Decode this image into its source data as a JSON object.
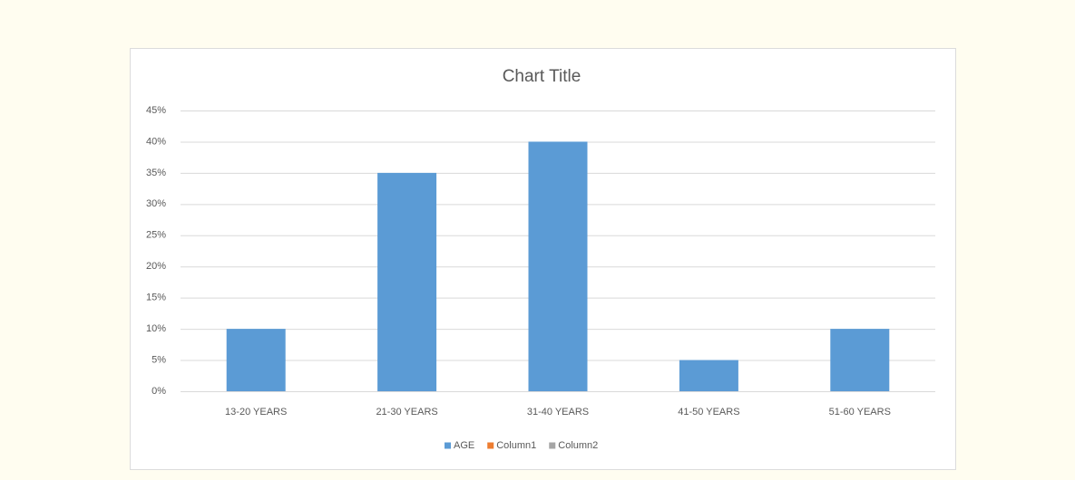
{
  "chart_data": {
    "type": "bar",
    "title": "Chart Title",
    "categories": [
      "13-20 YEARS",
      "21-30 YEARS",
      "31-40 YEARS",
      "41-50 YEARS",
      "51-60 YEARS"
    ],
    "series": [
      {
        "name": "AGE",
        "color": "#5b9bd5",
        "values": [
          10,
          35,
          40,
          5,
          10
        ]
      },
      {
        "name": "Column1",
        "color": "#ed7d31",
        "values": [
          null,
          null,
          null,
          null,
          null
        ]
      },
      {
        "name": "Column2",
        "color": "#a5a5a5",
        "values": [
          null,
          null,
          null,
          null,
          null
        ]
      }
    ],
    "ylim": [
      0,
      45
    ],
    "yticks": [
      {
        "value": 0,
        "label": "0%"
      },
      {
        "value": 5,
        "label": "5%"
      },
      {
        "value": 10,
        "label": "10%"
      },
      {
        "value": 15,
        "label": "15%"
      },
      {
        "value": 20,
        "label": "20%"
      },
      {
        "value": 25,
        "label": "25%"
      },
      {
        "value": 30,
        "label": "30%"
      },
      {
        "value": 35,
        "label": "35%"
      },
      {
        "value": 40,
        "label": "40%"
      },
      {
        "value": 45,
        "label": "45%"
      }
    ],
    "grid": true,
    "legend": "bottom"
  }
}
